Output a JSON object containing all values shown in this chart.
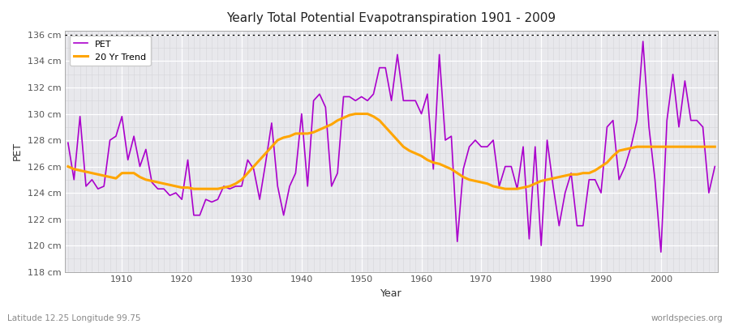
{
  "title": "Yearly Total Potential Evapotranspiration 1901 - 2009",
  "xlabel": "Year",
  "ylabel": "PET",
  "bottom_left": "Latitude 12.25 Longitude 99.75",
  "bottom_right": "worldspecies.org",
  "years": [
    1901,
    1902,
    1903,
    1904,
    1905,
    1906,
    1907,
    1908,
    1909,
    1910,
    1911,
    1912,
    1913,
    1914,
    1915,
    1916,
    1917,
    1918,
    1919,
    1920,
    1921,
    1922,
    1923,
    1924,
    1925,
    1926,
    1927,
    1928,
    1929,
    1930,
    1931,
    1932,
    1933,
    1934,
    1935,
    1936,
    1937,
    1938,
    1939,
    1940,
    1941,
    1942,
    1943,
    1944,
    1945,
    1946,
    1947,
    1948,
    1949,
    1950,
    1951,
    1952,
    1953,
    1954,
    1955,
    1956,
    1957,
    1958,
    1959,
    1960,
    1961,
    1962,
    1963,
    1964,
    1965,
    1966,
    1967,
    1968,
    1969,
    1970,
    1971,
    1972,
    1973,
    1974,
    1975,
    1976,
    1977,
    1978,
    1979,
    1980,
    1981,
    1982,
    1983,
    1984,
    1985,
    1986,
    1987,
    1988,
    1989,
    1990,
    1991,
    1992,
    1993,
    1994,
    1995,
    1996,
    1997,
    1998,
    1999,
    2000,
    2001,
    2002,
    2003,
    2004,
    2005,
    2006,
    2007,
    2008,
    2009
  ],
  "pet": [
    127.8,
    125.0,
    129.8,
    124.5,
    125.0,
    124.3,
    124.5,
    128.0,
    128.3,
    129.8,
    126.5,
    128.3,
    126.0,
    127.3,
    124.8,
    124.3,
    124.3,
    123.8,
    124.0,
    123.5,
    126.5,
    122.3,
    122.3,
    123.5,
    123.3,
    123.5,
    124.5,
    124.3,
    124.5,
    124.5,
    126.5,
    125.8,
    123.5,
    126.3,
    129.3,
    124.5,
    122.3,
    124.5,
    125.5,
    130.0,
    124.5,
    131.0,
    131.5,
    130.5,
    124.5,
    125.5,
    131.3,
    131.3,
    131.0,
    131.3,
    131.0,
    131.5,
    133.5,
    133.5,
    131.0,
    134.5,
    131.0,
    131.0,
    131.0,
    130.0,
    131.5,
    125.8,
    134.5,
    128.0,
    128.3,
    120.3,
    125.8,
    127.5,
    128.0,
    127.5,
    127.5,
    128.0,
    124.5,
    126.0,
    126.0,
    124.3,
    127.5,
    120.5,
    127.5,
    120.0,
    128.0,
    124.5,
    121.5,
    124.0,
    125.5,
    121.5,
    121.5,
    125.0,
    125.0,
    124.0,
    129.0,
    129.5,
    125.0,
    126.0,
    127.5,
    129.5,
    135.5,
    129.0,
    125.0,
    119.5,
    129.5,
    133.0,
    129.0,
    132.5,
    129.5,
    129.5,
    129.0,
    124.0,
    126.0
  ],
  "trend": [
    126.0,
    125.8,
    125.7,
    125.6,
    125.5,
    125.4,
    125.3,
    125.2,
    125.1,
    125.5,
    125.5,
    125.5,
    125.2,
    125.0,
    124.9,
    124.8,
    124.7,
    124.6,
    124.5,
    124.4,
    124.4,
    124.3,
    124.3,
    124.3,
    124.3,
    124.3,
    124.4,
    124.5,
    124.7,
    125.0,
    125.5,
    126.0,
    126.5,
    127.0,
    127.5,
    128.0,
    128.2,
    128.3,
    128.5,
    128.5,
    128.5,
    128.6,
    128.8,
    129.0,
    129.2,
    129.5,
    129.7,
    129.9,
    130.0,
    130.0,
    130.0,
    129.8,
    129.5,
    129.0,
    128.5,
    128.0,
    127.5,
    127.2,
    127.0,
    126.8,
    126.5,
    126.3,
    126.2,
    126.0,
    125.8,
    125.5,
    125.2,
    125.0,
    124.9,
    124.8,
    124.7,
    124.5,
    124.4,
    124.3,
    124.3,
    124.3,
    124.4,
    124.5,
    124.7,
    124.9,
    125.0,
    125.1,
    125.2,
    125.3,
    125.4,
    125.4,
    125.5,
    125.5,
    125.7,
    126.0,
    126.3,
    126.8,
    127.2,
    127.3,
    127.4,
    127.5,
    127.5,
    127.5,
    127.5,
    127.5,
    127.5,
    127.5,
    127.5,
    127.5,
    127.5,
    127.5,
    127.5,
    127.5,
    127.5
  ],
  "pet_color": "#AA00CC",
  "trend_color": "#FFA500",
  "fig_bg_color": "#FFFFFF",
  "plot_bg_color": "#E8E8EC",
  "ylim_min": 118,
  "ylim_max": 136,
  "yticks": [
    118,
    120,
    122,
    124,
    126,
    128,
    130,
    132,
    134,
    136
  ],
  "xticks": [
    1910,
    1920,
    1930,
    1940,
    1950,
    1960,
    1970,
    1980,
    1990,
    2000
  ],
  "dotted_line_y": 136
}
